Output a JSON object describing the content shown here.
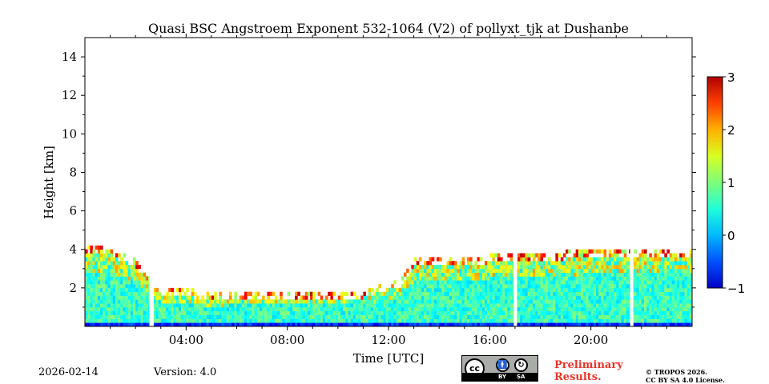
{
  "chart_data": {
    "type": "heatmap",
    "title": "Quasi BSC Angstroem Exponent 532-1064 (V2) of pollyxt_tjk at Dushanbe",
    "xlabel": "Time [UTC]",
    "ylabel": "Height [km]",
    "xlim": [
      0,
      24
    ],
    "ylim": [
      0,
      15
    ],
    "x_ticks": [
      4,
      8,
      12,
      16,
      20
    ],
    "x_tick_labels": [
      "04:00",
      "08:00",
      "12:00",
      "16:00",
      "20:00"
    ],
    "y_ticks": [
      2,
      4,
      6,
      8,
      10,
      12,
      14
    ],
    "y_tick_labels": [
      "2",
      "4",
      "6",
      "8",
      "10",
      "12",
      "14"
    ],
    "colorbar": {
      "min": -1,
      "max": 3,
      "ticks": [
        -1,
        0,
        1,
        2,
        3
      ],
      "tick_labels": [
        "−1",
        "0",
        "1",
        "2",
        "3"
      ],
      "colormap": "jet"
    },
    "data_gaps_hours": [
      [
        2.55,
        2.72
      ],
      [
        16.95,
        17.08
      ],
      [
        21.55,
        21.68
      ]
    ],
    "layer_top_km": [
      [
        0.0,
        3.7
      ],
      [
        1.0,
        3.6
      ],
      [
        2.0,
        3.0
      ],
      [
        2.55,
        2.2
      ],
      [
        3.0,
        1.6
      ],
      [
        5.0,
        1.3
      ],
      [
        7.0,
        1.4
      ],
      [
        9.0,
        1.4
      ],
      [
        11.0,
        1.4
      ],
      [
        12.5,
        2.0
      ],
      [
        13.0,
        3.0
      ],
      [
        15.0,
        3.1
      ],
      [
        17.0,
        3.3
      ],
      [
        19.0,
        3.4
      ],
      [
        20.0,
        3.5
      ],
      [
        22.0,
        3.5
      ],
      [
        24.0,
        3.6
      ]
    ],
    "typical_value_in_layer": 0.7,
    "noisy_upper_value_range": [
      1.0,
      2.8
    ]
  },
  "footer": {
    "date": "2026-02-14",
    "version": "Version: 4.0",
    "license_badge": {
      "cc": "cc",
      "by": "BY",
      "sa": "SA"
    },
    "preliminary_line1": "Preliminary",
    "preliminary_line2": "Results.",
    "copyright_line1": "© TROPOS 2026.",
    "copyright_line2": "CC BY SA 4.0 License."
  },
  "colors": {
    "accent_red": "#e8332a",
    "badge_grey": "#a9aca9"
  }
}
